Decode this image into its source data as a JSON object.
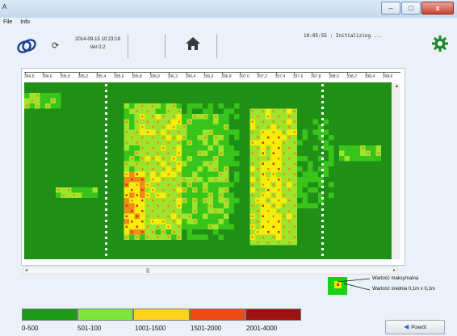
{
  "window": {
    "app_icon": "A",
    "minimize": "–",
    "maximize": "□",
    "close": "x"
  },
  "menu": {
    "items": [
      "File",
      "Info"
    ]
  },
  "toolbar": {
    "date": "2014-09-15 10:23:18",
    "version": "Ver 0.2",
    "status": "10:05:55 : Initializing ...",
    "logo_icon": "company-logo-icon",
    "refresh_icon": "refresh-icon",
    "home_icon": "home-icon",
    "settings_icon": "gear-icon"
  },
  "ruler": {
    "labels": [
      "394,5",
      "394,6",
      "395,0",
      "395,2",
      "395,4",
      "395,6",
      "395,8",
      "396,0",
      "396,2",
      "396,4",
      "396,6",
      "396,8",
      "397,0",
      "397,2",
      "397,4",
      "397,6",
      "397,8",
      "398,0",
      "398,2",
      "398,4",
      "398,6"
    ]
  },
  "legend": {
    "max_label": "Wartość maksymalna",
    "avg_label": "Wartość średnia  0,1m x 0,1m"
  },
  "scale": {
    "colors": [
      "#1a9a16",
      "#7ee83a",
      "#ffd21e",
      "#ef4a16",
      "#a01010"
    ],
    "labels": [
      "0-500",
      "501-100",
      "1001-1500",
      "1501-2000",
      "2001-4000"
    ]
  },
  "buttons": {
    "back": "Powrót"
  },
  "colors": {
    "base_green": "#1f8f16",
    "cell_green": "#39c41c",
    "cell_lime": "#9ee42a",
    "cell_yellow": "#f5ee0a",
    "cell_orange": "#f08a1a",
    "cell_red": "#e02a10",
    "marker_white": "#ffffff"
  }
}
